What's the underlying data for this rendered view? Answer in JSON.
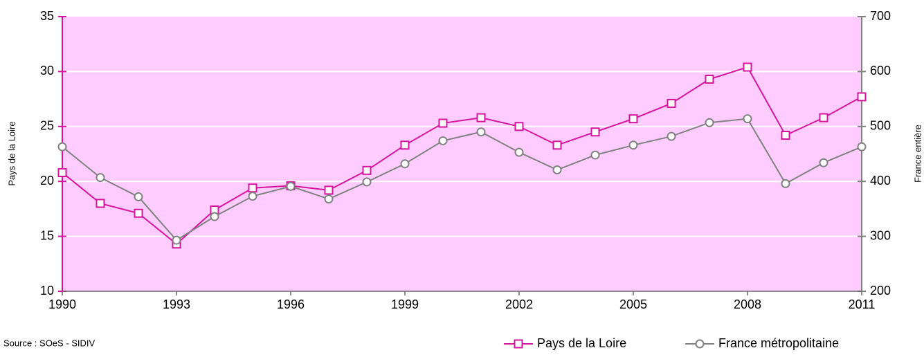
{
  "chart_data": {
    "type": "line",
    "ylabel": "Pays de la Loire",
    "y2label": "France entière",
    "source": "Source : SOeS - SIDIV",
    "x": [
      1990,
      1991,
      1992,
      1993,
      1994,
      1995,
      1996,
      1997,
      1998,
      1999,
      2000,
      2001,
      2002,
      2003,
      2004,
      2005,
      2006,
      2007,
      2008,
      2009,
      2010,
      2011
    ],
    "xlim": [
      1990,
      2011
    ],
    "xticks": [
      1990,
      1993,
      1996,
      1999,
      2002,
      2005,
      2008,
      2011
    ],
    "ylim": [
      10,
      35
    ],
    "yticks": [
      10,
      15,
      20,
      25,
      30,
      35
    ],
    "y2lim": [
      200,
      700
    ],
    "y2ticks": [
      200,
      300,
      400,
      500,
      600,
      700
    ],
    "grid": true,
    "legend": "bottom-right",
    "background": "#ffccff",
    "series": [
      {
        "name": "Pays de la Loire",
        "color": "#d4149c",
        "marker": "square",
        "axis": "y",
        "values": [
          20.8,
          18.0,
          17.1,
          14.3,
          17.4,
          19.4,
          19.6,
          19.2,
          21.0,
          23.3,
          25.3,
          25.8,
          25.0,
          23.3,
          24.5,
          25.7,
          27.1,
          29.3,
          30.4,
          24.2,
          25.8,
          27.7
        ]
      },
      {
        "name": "France métropolitaine",
        "color": "#808080",
        "marker": "circle",
        "axis": "y2",
        "values": [
          463,
          407,
          372,
          293,
          336,
          373,
          391,
          368,
          399,
          432,
          474,
          490,
          453,
          421,
          448,
          466,
          482,
          507,
          514,
          396,
          434,
          463
        ]
      }
    ]
  }
}
